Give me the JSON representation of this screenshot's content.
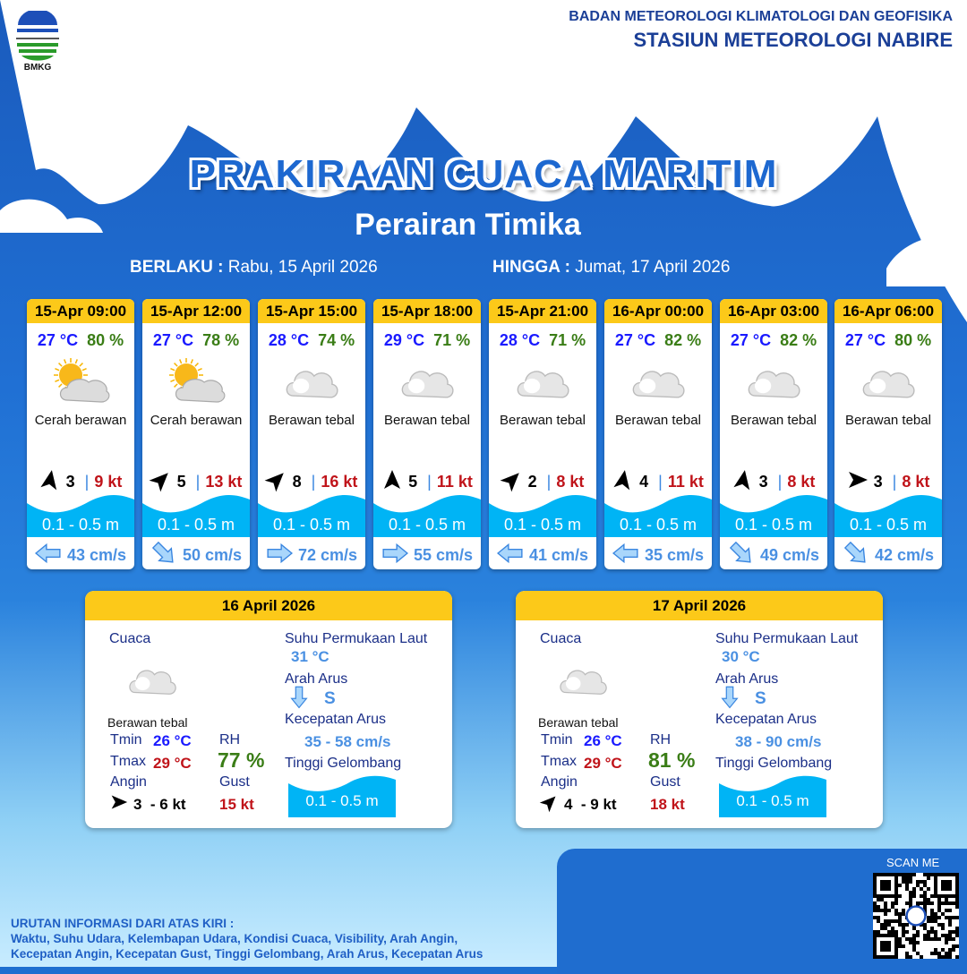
{
  "header": {
    "logo_text": "BMKG",
    "agency": "BADAN METEOROLOGI KLIMATOLOGI DAN GEOFISIKA",
    "station": "STASIUN METEOROLOGI NABIRE"
  },
  "title": "PRAKIRAAN CUACA MARITIM",
  "subtitle": "Perairan Timika",
  "validity": {
    "from_label": "BERLAKU :",
    "from": "Rabu, 15 April 2026",
    "to_label": "HINGGA :",
    "to": "Jumat, 17 April 2026"
  },
  "forecasts": [
    {
      "time": "15-Apr 09:00",
      "temp": "27 °C",
      "rh": "80 %",
      "icon": "partly-cloudy-icon",
      "cond": "Cerah berawan",
      "wind_dir_deg": -80,
      "wind": "3",
      "gust": "9 kt",
      "wave": "0.1 - 0.5 m",
      "current_dir": "W",
      "current_rot": 180,
      "current": "43 cm/s"
    },
    {
      "time": "15-Apr 12:00",
      "temp": "27 °C",
      "rh": "78 %",
      "icon": "partly-cloudy-icon",
      "cond": "Cerah berawan",
      "wind_dir_deg": -45,
      "wind": "5",
      "gust": "13 kt",
      "wave": "0.1 - 0.5 m",
      "current_dir": "SE",
      "current_rot": 45,
      "current": "50 cm/s"
    },
    {
      "time": "15-Apr 15:00",
      "temp": "28 °C",
      "rh": "74 %",
      "icon": "cloud-icon",
      "cond": "Berawan tebal",
      "wind_dir_deg": -45,
      "wind": "8",
      "gust": "16 kt",
      "wave": "0.1 - 0.5 m",
      "current_dir": "E",
      "current_rot": 0,
      "current": "72 cm/s"
    },
    {
      "time": "15-Apr 18:00",
      "temp": "29 °C",
      "rh": "71 %",
      "icon": "cloud-icon",
      "cond": "Berawan tebal",
      "wind_dir_deg": -90,
      "wind": "5",
      "gust": "11 kt",
      "wave": "0.1 - 0.5 m",
      "current_dir": "E",
      "current_rot": 0,
      "current": "55 cm/s"
    },
    {
      "time": "15-Apr 21:00",
      "temp": "28 °C",
      "rh": "71 %",
      "icon": "cloud-icon",
      "cond": "Berawan tebal",
      "wind_dir_deg": -45,
      "wind": "2",
      "gust": "8 kt",
      "wave": "0.1 - 0.5 m",
      "current_dir": "W",
      "current_rot": 180,
      "current": "41 cm/s"
    },
    {
      "time": "16-Apr 00:00",
      "temp": "27 °C",
      "rh": "82 %",
      "icon": "cloud-icon",
      "cond": "Berawan tebal",
      "wind_dir_deg": -80,
      "wind": "4",
      "gust": "11 kt",
      "wave": "0.1 - 0.5 m",
      "current_dir": "W",
      "current_rot": 180,
      "current": "35 cm/s"
    },
    {
      "time": "16-Apr 03:00",
      "temp": "27 °C",
      "rh": "82 %",
      "icon": "cloud-icon",
      "cond": "Berawan tebal",
      "wind_dir_deg": -80,
      "wind": "3",
      "gust": "8 kt",
      "wave": "0.1 - 0.5 m",
      "current_dir": "SE",
      "current_rot": 45,
      "current": "49 cm/s"
    },
    {
      "time": "16-Apr 06:00",
      "temp": "27 °C",
      "rh": "80 %",
      "icon": "cloud-icon",
      "cond": "Berawan tebal",
      "wind_dir_deg": 0,
      "wind": "3",
      "gust": "8 kt",
      "wave": "0.1 - 0.5 m",
      "current_dir": "SE",
      "current_rot": 45,
      "current": "42 cm/s"
    }
  ],
  "daily": [
    {
      "date": "16 April 2026",
      "cuaca_label": "Cuaca",
      "cond": "Berawan tebal",
      "tmin_label": "Tmin",
      "tmin": "26 °C",
      "tmax_label": "Tmax",
      "tmax": "29 °C",
      "rh_label": "RH",
      "rh": "77 %",
      "angin_label": "Angin",
      "wind_dir_deg": 0,
      "wind": "3  - 6 kt",
      "gust_label": "Gust",
      "gust": "15 kt",
      "sst_label": "Suhu Permukaan Laut",
      "sst": "31 °C",
      "arah_label": "Arah Arus",
      "arah": "S",
      "kec_label": "Kecepatan Arus",
      "kec": "35 - 58 cm/s",
      "wave_label": "Tinggi Gelombang",
      "wave": "0.1 - 0.5 m"
    },
    {
      "date": "17 April 2026",
      "cuaca_label": "Cuaca",
      "cond": "Berawan tebal",
      "tmin_label": "Tmin",
      "tmin": "26 °C",
      "tmax_label": "Tmax",
      "tmax": "29 °C",
      "rh_label": "RH",
      "rh": "81 %",
      "angin_label": "Angin",
      "wind_dir_deg": -45,
      "wind": "4  - 9 kt",
      "gust_label": "Gust",
      "gust": "18 kt",
      "sst_label": "Suhu Permukaan Laut",
      "sst": "30 °C",
      "arah_label": "Arah Arus",
      "arah": "S",
      "kec_label": "Kecepatan Arus",
      "kec": "38 - 90 cm/s",
      "wave_label": "Tinggi Gelombang",
      "wave": "0.1 - 0.5 m"
    }
  ],
  "footer": {
    "heading": "URUTAN INFORMASI DARI ATAS KIRI :",
    "line1": "Waktu, Suhu Udara, Kelembapan Udara, Kondisi Cuaca, Visibility, Arah Angin,",
    "line2": "Kecepatan Angin, Kecepatan Gust, Tinggi Gelombang, Arah Arus, Kecepatan Arus"
  },
  "qr": {
    "label": "SCAN ME"
  },
  "colors": {
    "header_yellow": "#fcc919",
    "temp": "#1a1aff",
    "rh": "#3a7d16",
    "gust": "#c0141a",
    "wave": "#00b4f5",
    "current": "#4a90e2"
  }
}
